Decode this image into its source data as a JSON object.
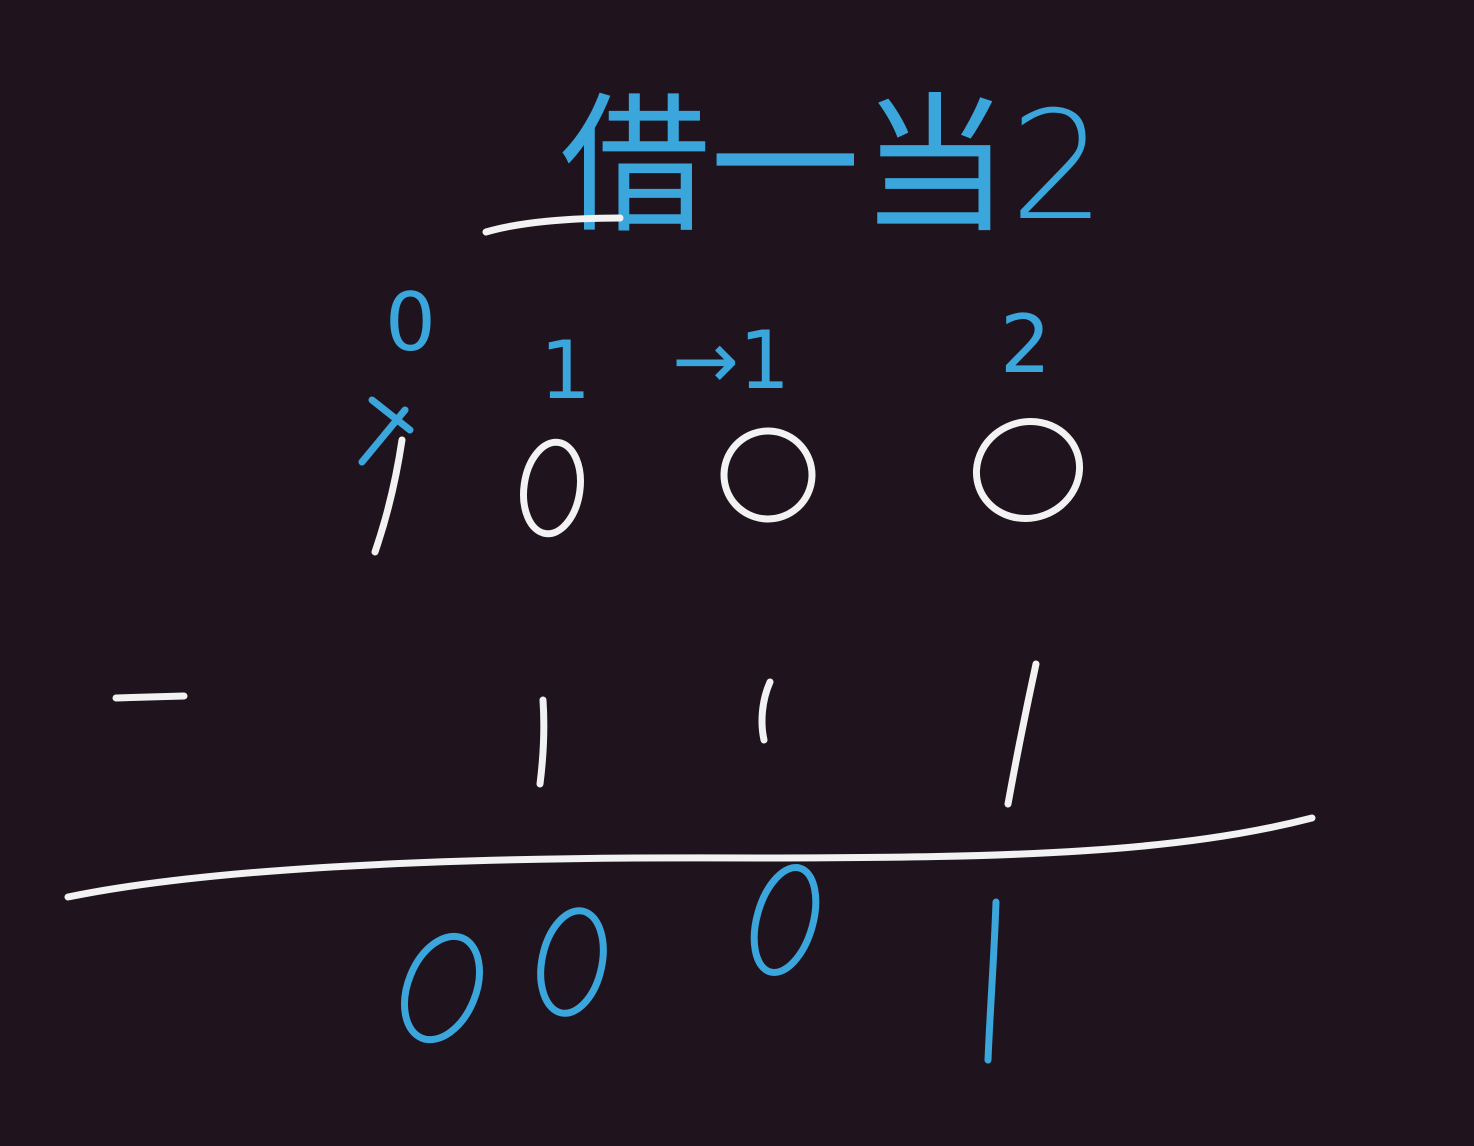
{
  "note": {
    "title": "借一当2",
    "colors": {
      "background": "#1f141e",
      "ink_white": "#f2f2f2",
      "ink_blue": "#3aa6dc"
    },
    "borrow_marks": [
      "0",
      "1",
      "→1",
      "2"
    ],
    "minuend": [
      "1",
      "0",
      "0",
      "0"
    ],
    "operator": "−",
    "subtrahend": [
      "1",
      "1",
      "1"
    ],
    "result": [
      "0",
      "0",
      "0",
      "1"
    ]
  }
}
